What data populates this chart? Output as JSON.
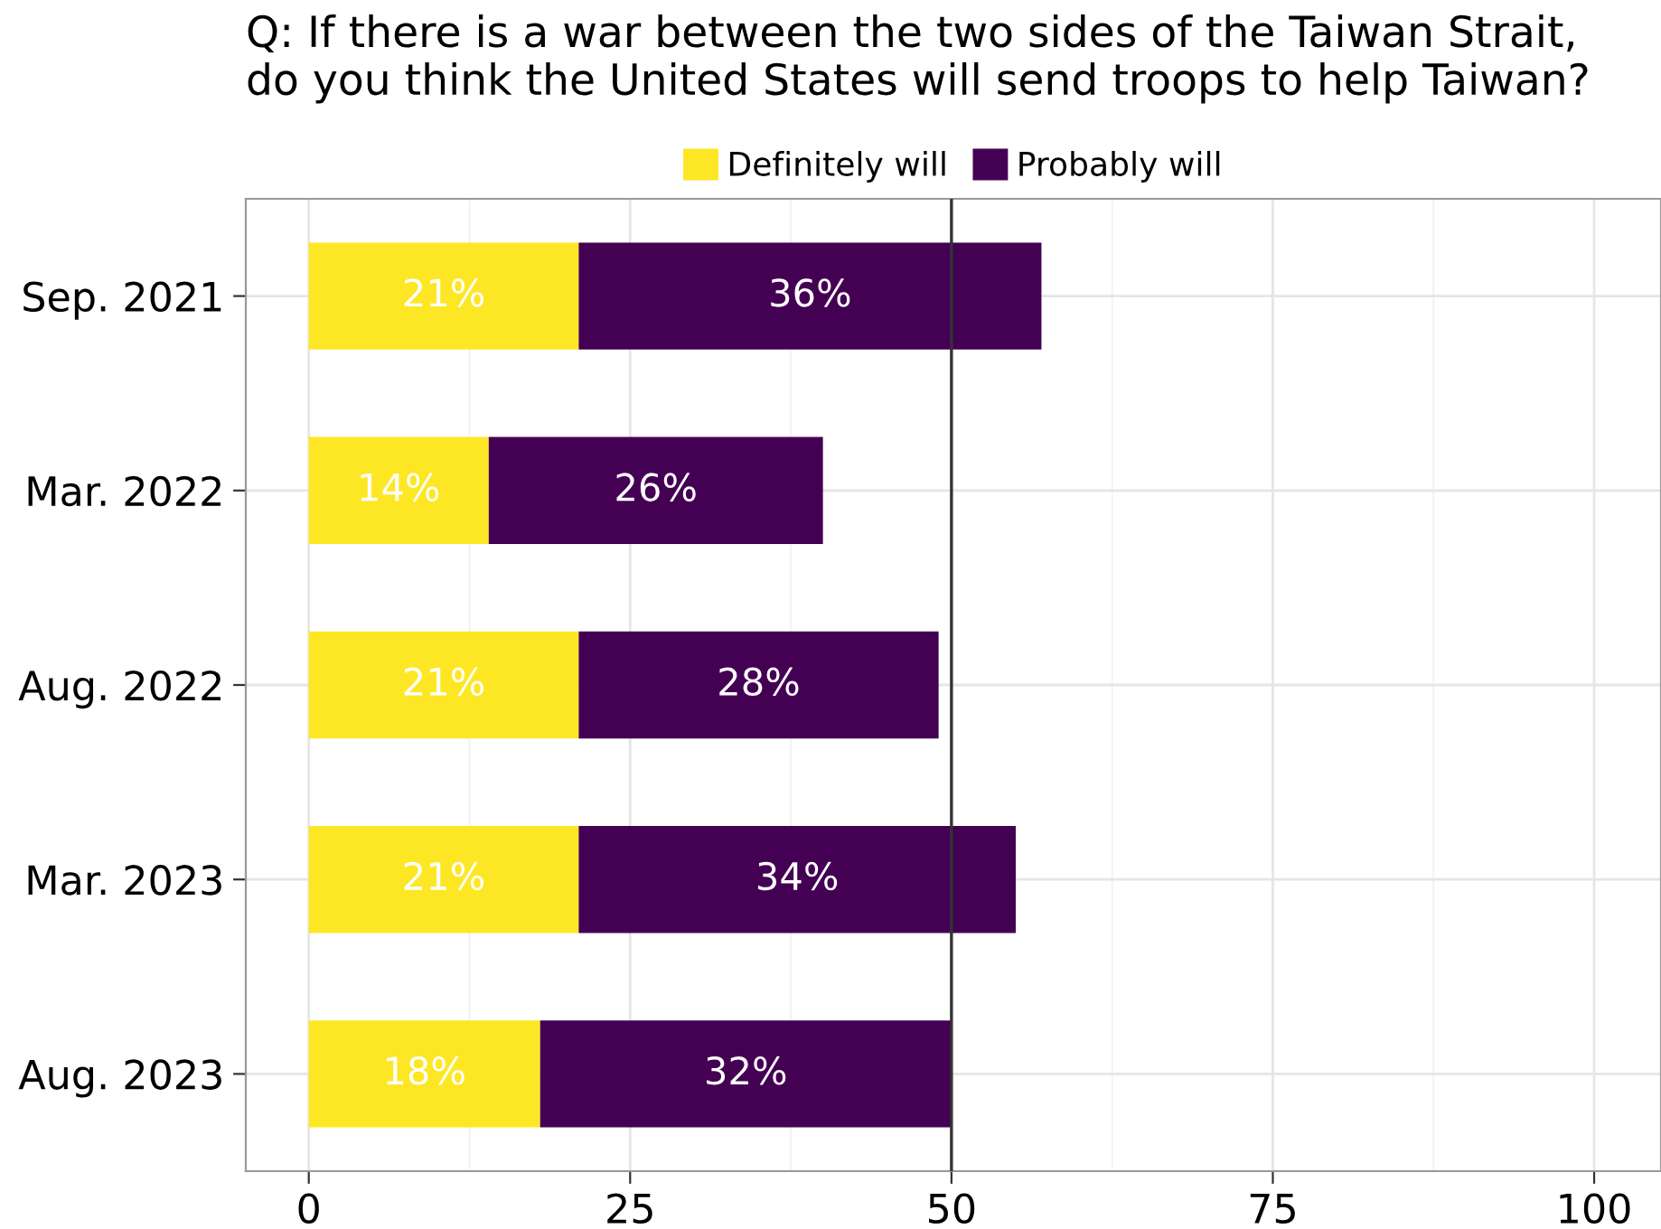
{
  "chart_data": {
    "type": "bar",
    "orientation": "horizontal",
    "stacked": true,
    "title": "Q: If there is a war between the two sides of the Taiwan Strait,\ndo you think the United States will send troops to help Taiwan?",
    "categories": [
      "Sep. 2021",
      "Mar. 2022",
      "Aug. 2022",
      "Mar. 2023",
      "Aug. 2023"
    ],
    "series": [
      {
        "name": "Definitely will",
        "color": "#fde725",
        "values": [
          21,
          14,
          21,
          21,
          18
        ],
        "value_labels": [
          "21%",
          "14%",
          "21%",
          "21%",
          "18%"
        ]
      },
      {
        "name": "Probably will",
        "color": "#440154",
        "values": [
          36,
          26,
          28,
          34,
          32
        ],
        "value_labels": [
          "36%",
          "26%",
          "28%",
          "34%",
          "32%"
        ]
      }
    ],
    "xlim": [
      -4.9,
      105.2
    ],
    "xticks": [
      0,
      25,
      50,
      75,
      100
    ],
    "ref_lines": [
      {
        "axis": "x",
        "value": 50,
        "color": "#333333"
      }
    ],
    "grid": true,
    "legend": "top"
  }
}
